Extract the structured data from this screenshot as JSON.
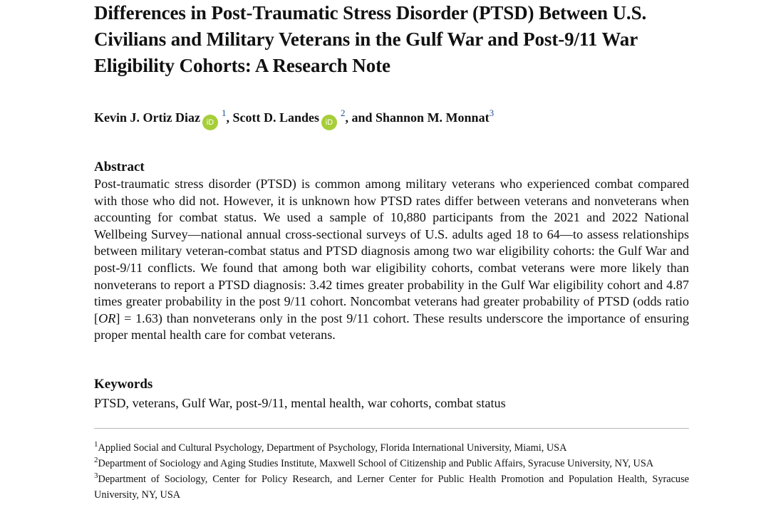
{
  "paper": {
    "title": "Differences in Post-Traumatic Stress Disorder (PTSD) Between U.S. Civilians and Military Veterans in the Gulf War and Post-9/11 War Eligibility Cohorts: A Research Note",
    "authors": [
      {
        "name": "Kevin J. Ortiz Diaz",
        "affiliation": "1",
        "orcid": "iD"
      },
      {
        "name": "Scott D. Landes",
        "affiliation": "2",
        "orcid": "iD"
      },
      {
        "name": "Shannon M. Monnat",
        "affiliation": "3"
      }
    ],
    "author_separators": {
      "first": ", ",
      "second": ", and "
    },
    "abstract": {
      "heading": "Abstract",
      "body_before_italic": "Post-traumatic stress disorder (PTSD) is common among military veterans who experienced combat compared with those who did not. However, it is unknown how PTSD rates differ between veterans and nonveterans when accounting for combat status. We used a sample of 10,880 participants from the 2021 and 2022 National Wellbeing Survey—national annual cross-sectional surveys of U.S. adults aged 18 to 64—to assess relationships between military veteran-combat status and PTSD diagnosis among two war eligibility cohorts: the Gulf War and post-9/11 conflicts. We found that among both war eligibility cohorts, combat veterans were more likely than nonveterans to report a PTSD diagnosis: 3.42 times greater probability in the Gulf War eligibility cohort and 4.87 times greater probability in the post 9/11 cohort. Noncombat veterans had greater probability of PTSD (odds ratio [",
      "italic": "OR",
      "body_after_italic": "] = 1.63) than nonveterans only in the post 9/11 cohort. These results underscore the importance of ensuring proper mental health care for combat veterans."
    },
    "keywords": {
      "heading": "Keywords",
      "text": "PTSD, veterans, Gulf War, post-9/11, mental health, war cohorts, combat status"
    },
    "footnotes": [
      {
        "mark": "1",
        "text": "Applied Social and Cultural Psychology, Department of Psychology, Florida International University, Miami, USA"
      },
      {
        "mark": "2",
        "text": "Department of Sociology and Aging Studies Institute, Maxwell School of Citizenship and Public Affairs, Syracuse University, NY, USA"
      },
      {
        "mark": "3",
        "text": "Department of Sociology, Center for Policy Research, and Lerner Center for Public Health Promotion and Population Health, Syracuse University, NY, USA"
      }
    ]
  },
  "colors": {
    "orcid": "#a6ce39",
    "affiliation_link": "#1f4e9c",
    "rule": "#b8b8b8"
  }
}
